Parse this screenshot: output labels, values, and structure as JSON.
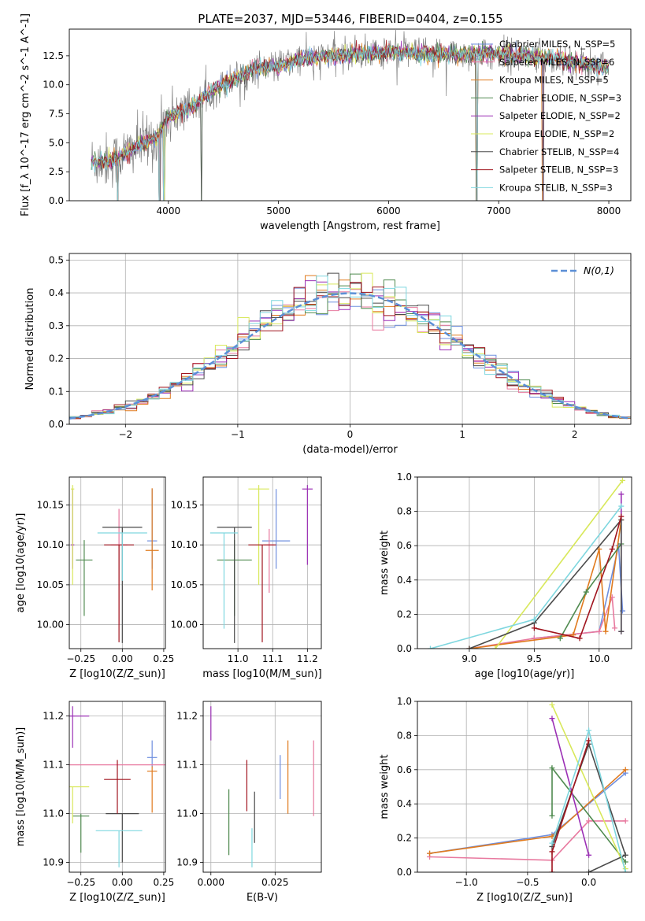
{
  "figure_title": "PLATE=2037, MJD=53446, FIBERID=0404, z=0.155",
  "series_legend": [
    {
      "name": "Chabrier MILES, N_SSP=5",
      "color": "#6f8fdf"
    },
    {
      "name": "Salpeter MILES, N_SSP=6",
      "color": "#e8799f"
    },
    {
      "name": "Kroupa MILES, N_SSP=5",
      "color": "#e07b1f"
    },
    {
      "name": "Chabrier ELODIE, N_SSP=3",
      "color": "#4f8a4f"
    },
    {
      "name": "Salpeter ELODIE, N_SSP=2",
      "color": "#9b2fb5"
    },
    {
      "name": "Kroupa ELODIE, N_SSP=2",
      "color": "#d8e85a"
    },
    {
      "name": "Chabrier STELIB, N_SSP=4",
      "color": "#4a4a4a"
    },
    {
      "name": "Salpeter STELIB, N_SSP=3",
      "color": "#a0141e"
    },
    {
      "name": "Kroupa STELIB, N_SSP=3",
      "color": "#7fd7df"
    }
  ],
  "chart_data": [
    {
      "id": "spectrum",
      "type": "line",
      "xlabel": "wavelength [Angstrom, rest frame]",
      "ylabel": "Flux [f_λ 10^-17 erg cm^-2 s^-1 A^-1]",
      "xlim": [
        3100,
        8200
      ],
      "ylim": [
        0,
        14.8
      ],
      "xticks": [
        4000,
        5000,
        6000,
        7000,
        8000
      ],
      "yticks": [
        0.0,
        2.5,
        5.0,
        7.5,
        10.0,
        12.5
      ],
      "grid": false,
      "legend_position": "lower-right",
      "observed_data_color": "#808080",
      "continuum_model": [
        [
          3300,
          3.4
        ],
        [
          3500,
          3.5
        ],
        [
          3700,
          4.6
        ],
        [
          3900,
          5.5
        ],
        [
          4000,
          7.2
        ],
        [
          4200,
          8.0
        ],
        [
          4400,
          9.5
        ],
        [
          4600,
          10.5
        ],
        [
          4800,
          11.5
        ],
        [
          5000,
          11.6
        ],
        [
          5200,
          12.2
        ],
        [
          5500,
          12.5
        ],
        [
          6000,
          12.8
        ],
        [
          6500,
          12.6
        ],
        [
          7000,
          12.7
        ],
        [
          7500,
          12.3
        ],
        [
          7800,
          11.8
        ],
        [
          8000,
          11.4
        ]
      ],
      "absorption_dips": [
        3540,
        3920,
        3960,
        4300,
        6800,
        7400
      ]
    },
    {
      "id": "residual_histogram",
      "type": "bar",
      "xlabel": "(data-model)/error",
      "ylabel": "Normed distribution",
      "xlim": [
        -2.5,
        2.5
      ],
      "ylim": [
        0,
        0.52
      ],
      "xticks": [
        -2,
        -1,
        0,
        1,
        2
      ],
      "yticks": [
        0.0,
        0.1,
        0.2,
        0.3,
        0.4,
        0.5
      ],
      "grid": true,
      "legend_position": "top-right",
      "bin_width": 0.1,
      "reference_curve": {
        "name": "N(0,1)",
        "mu": 0,
        "sigma": 1,
        "color": "#5b8fd6"
      }
    },
    {
      "id": "age_vs_Z",
      "type": "scatter",
      "xlabel": "Z [log10(Z/Z_sun)]",
      "ylabel": "age  [log10(age/yr)]",
      "xlim": [
        -0.32,
        0.26
      ],
      "ylim": [
        9.97,
        10.185
      ],
      "xticks": [
        -0.25,
        0.0,
        0.25
      ],
      "yticks": [
        10.0,
        10.05,
        10.1,
        10.15
      ],
      "grid": true,
      "points": [
        {
          "series": 0,
          "x": 0.18,
          "xerr": 0.03,
          "y": 10.105,
          "yerr_lo": 0.035,
          "yerr_hi": 0.065
        },
        {
          "series": 1,
          "x": -0.02,
          "xerr": 0.05,
          "y": 10.1,
          "yerr_lo": 0.1,
          "yerr_hi": 0.045
        },
        {
          "series": 2,
          "x": 0.18,
          "xerr": 0.04,
          "y": 10.093,
          "yerr_lo": 0.05,
          "yerr_hi": 0.078
        },
        {
          "series": 3,
          "x": -0.23,
          "xerr": 0.05,
          "y": 10.081,
          "yerr_lo": 0.07,
          "yerr_hi": 0.025
        },
        {
          "series": 4,
          "x": -0.3,
          "xerr": 0.01,
          "y": 10.1,
          "yerr_lo": 0.03,
          "yerr_hi": 0.07
        },
        {
          "series": 5,
          "x": -0.3,
          "xerr": 0.01,
          "y": 10.17,
          "yerr_lo": 0.12,
          "yerr_hi": 0.005
        },
        {
          "series": 6,
          "x": 0.0,
          "xerr": 0.12,
          "y": 10.122,
          "yerr_lo": 0.145,
          "yerr_hi": 0.0
        },
        {
          "series": 7,
          "x": -0.02,
          "xerr": 0.09,
          "y": 10.1,
          "yerr_lo": 0.122,
          "yerr_hi": 0.0
        },
        {
          "series": 8,
          "x": 0.0,
          "xerr": 0.15,
          "y": 10.115,
          "yerr_lo": 0.06,
          "yerr_hi": 0.0
        }
      ]
    },
    {
      "id": "age_vs_mass",
      "type": "scatter",
      "xlabel": "mass [log10(M/M_sun)]",
      "ylabel": "",
      "xlim": [
        10.9,
        11.24
      ],
      "ylim": [
        9.97,
        10.185
      ],
      "xticks": [
        11.0,
        11.1,
        11.2
      ],
      "yticks": [
        10.0,
        10.05,
        10.1,
        10.15
      ],
      "grid": true,
      "points": [
        {
          "series": 0,
          "x": 11.11,
          "xerr": 0.04,
          "y": 10.105,
          "yerr_lo": 0.035,
          "yerr_hi": 0.065
        },
        {
          "series": 1,
          "x": 11.09,
          "xerr": 0.015,
          "y": 10.1,
          "yerr_lo": 0.06,
          "yerr_hi": 0.02
        },
        {
          "series": 3,
          "x": 10.99,
          "xerr": 0.05,
          "y": 10.081,
          "yerr_lo": 0.07,
          "yerr_hi": 0.025
        },
        {
          "series": 4,
          "x": 11.2,
          "xerr": 0.015,
          "y": 10.17,
          "yerr_lo": 0.095,
          "yerr_hi": 0.005
        },
        {
          "series": 5,
          "x": 11.06,
          "xerr": 0.03,
          "y": 10.17,
          "yerr_lo": 0.12,
          "yerr_hi": 0.005
        },
        {
          "series": 6,
          "x": 10.99,
          "xerr": 0.05,
          "y": 10.122,
          "yerr_lo": 0.145,
          "yerr_hi": 0.0
        },
        {
          "series": 7,
          "x": 11.07,
          "xerr": 0.04,
          "y": 10.1,
          "yerr_lo": 0.122,
          "yerr_hi": 0.0
        },
        {
          "series": 8,
          "x": 10.96,
          "xerr": 0.04,
          "y": 10.115,
          "yerr_lo": 0.12,
          "yerr_hi": 0.0
        }
      ]
    },
    {
      "id": "mass_weight_vs_age",
      "type": "line",
      "xlabel": "age  [log10(age/yr)]",
      "ylabel": "mass weight",
      "xlim": [
        8.6,
        10.25
      ],
      "ylim": [
        0,
        1.0
      ],
      "xticks": [
        9.0,
        9.5,
        10.0
      ],
      "yticks": [
        0.0,
        0.2,
        0.4,
        0.6,
        0.8,
        1.0
      ],
      "grid": true,
      "series": [
        {
          "series": 0,
          "points": [
            [
              9.5,
              0.06
            ],
            [
              10.0,
              0.1
            ],
            [
              10.15,
              0.6
            ],
            [
              10.18,
              0.22
            ]
          ]
        },
        {
          "series": 1,
          "points": [
            [
              9.0,
              0.0
            ],
            [
              9.5,
              0.06
            ],
            [
              10.0,
              0.1
            ],
            [
              10.1,
              0.3
            ],
            [
              10.12,
              0.12
            ]
          ]
        },
        {
          "series": 2,
          "points": [
            [
              9.0,
              0.0
            ],
            [
              9.8,
              0.08
            ],
            [
              10.0,
              0.58
            ],
            [
              10.05,
              0.1
            ],
            [
              10.17,
              0.75
            ]
          ]
        },
        {
          "series": 3,
          "points": [
            [
              9.7,
              0.06
            ],
            [
              9.9,
              0.33
            ],
            [
              10.17,
              0.61
            ]
          ]
        },
        {
          "series": 4,
          "points": [
            [
              10.17,
              0.1
            ],
            [
              10.17,
              0.9
            ]
          ]
        },
        {
          "series": 5,
          "points": [
            [
              9.2,
              0.0
            ],
            [
              10.18,
              0.98
            ]
          ]
        },
        {
          "series": 6,
          "points": [
            [
              9.0,
              0.0
            ],
            [
              9.5,
              0.15
            ],
            [
              10.17,
              0.75
            ],
            [
              10.17,
              0.1
            ]
          ]
        },
        {
          "series": 7,
          "points": [
            [
              9.5,
              0.12
            ],
            [
              9.85,
              0.06
            ],
            [
              10.1,
              0.58
            ],
            [
              10.17,
              0.77
            ]
          ]
        },
        {
          "series": 8,
          "points": [
            [
              8.7,
              0.0
            ],
            [
              9.5,
              0.17
            ],
            [
              10.17,
              0.83
            ]
          ]
        }
      ]
    },
    {
      "id": "mass_vs_Z",
      "type": "scatter",
      "xlabel": "Z [log10(Z/Z_sun)]",
      "ylabel": "mass [log10(M/M_sun)]",
      "xlim": [
        -0.32,
        0.26
      ],
      "ylim": [
        10.88,
        11.23
      ],
      "xticks": [
        -0.25,
        0.0,
        0.25
      ],
      "yticks": [
        10.9,
        11.0,
        11.1,
        11.2
      ],
      "grid": true,
      "points": [
        {
          "series": 0,
          "x": 0.18,
          "xerr": 0.03,
          "y": 11.115,
          "yerr_lo": 0.02,
          "yerr_hi": 0.035
        },
        {
          "series": 1,
          "x": -0.02,
          "xerr": 0.3,
          "y": 11.1,
          "yerr_lo": 0.0,
          "yerr_hi": 0.0
        },
        {
          "series": 2,
          "x": 0.18,
          "xerr": 0.03,
          "y": 11.087,
          "yerr_lo": 0.085,
          "yerr_hi": 0.01
        },
        {
          "series": 3,
          "x": -0.25,
          "xerr": 0.05,
          "y": 10.995,
          "yerr_lo": 0.075,
          "yerr_hi": 0.005
        },
        {
          "series": 4,
          "x": -0.3,
          "xerr": 0.1,
          "y": 11.2,
          "yerr_lo": 0.065,
          "yerr_hi": 0.02
        },
        {
          "series": 5,
          "x": -0.3,
          "xerr": 0.1,
          "y": 11.055,
          "yerr_lo": 0.075,
          "yerr_hi": 0.0
        },
        {
          "series": 6,
          "x": 0.0,
          "xerr": 0.1,
          "y": 11.0,
          "yerr_lo": 0.1,
          "yerr_hi": 0.0
        },
        {
          "series": 7,
          "x": -0.03,
          "xerr": 0.08,
          "y": 11.07,
          "yerr_lo": 0.07,
          "yerr_hi": 0.04
        },
        {
          "series": 8,
          "x": -0.02,
          "xerr": 0.14,
          "y": 10.965,
          "yerr_lo": 0.075,
          "yerr_hi": 0.0
        }
      ]
    },
    {
      "id": "mass_vs_ebv",
      "type": "scatter",
      "xlabel": "E(B-V)",
      "ylabel": "",
      "xlim": [
        -0.003,
        0.043
      ],
      "ylim": [
        10.88,
        11.23
      ],
      "xticks": [
        0.0,
        0.025
      ],
      "xticklabels": [
        "0.000",
        "0.025"
      ],
      "yticks": [
        10.9,
        11.0,
        11.1,
        11.2
      ],
      "grid": true,
      "points": [
        {
          "series": 0,
          "x": 0.027,
          "xerr": 0.0,
          "y": 11.07,
          "yerr_lo": 0.04,
          "yerr_hi": 0.05
        },
        {
          "series": 1,
          "x": 0.04,
          "xerr": 0.0,
          "y": 11.05,
          "yerr_lo": 0.055,
          "yerr_hi": 0.1
        },
        {
          "series": 2,
          "x": 0.03,
          "xerr": 0.0,
          "y": 11.05,
          "yerr_lo": 0.05,
          "yerr_hi": 0.1
        },
        {
          "series": 3,
          "x": 0.007,
          "xerr": 0.0,
          "y": 11.0,
          "yerr_lo": 0.085,
          "yerr_hi": 0.05
        },
        {
          "series": 4,
          "x": 0.0,
          "xerr": 0.0,
          "y": 11.2,
          "yerr_lo": 0.05,
          "yerr_hi": 0.02
        },
        {
          "series": 6,
          "x": 0.017,
          "xerr": 0.0,
          "y": 11.0,
          "yerr_lo": 0.06,
          "yerr_hi": 0.045
        },
        {
          "series": 7,
          "x": 0.014,
          "xerr": 0.0,
          "y": 11.05,
          "yerr_lo": 0.045,
          "yerr_hi": 0.06
        },
        {
          "series": 8,
          "x": 0.016,
          "xerr": 0.0,
          "y": 10.96,
          "yerr_lo": 0.07,
          "yerr_hi": 0.01
        }
      ]
    },
    {
      "id": "mass_weight_vs_Z",
      "type": "line",
      "xlabel": "Z [log10(Z/Z_sun)]",
      "ylabel": "mass weight",
      "xlim": [
        -1.4,
        0.35
      ],
      "ylim": [
        0,
        1.0
      ],
      "xticks": [
        -1.0,
        -0.5,
        0.0
      ],
      "yticks": [
        0.0,
        0.2,
        0.4,
        0.6,
        0.8,
        1.0
      ],
      "grid": true,
      "series": [
        {
          "series": 0,
          "points": [
            [
              -1.3,
              0.11
            ],
            [
              -0.3,
              0.22
            ],
            [
              0.3,
              0.58
            ]
          ]
        },
        {
          "series": 1,
          "points": [
            [
              -1.3,
              0.09
            ],
            [
              -0.3,
              0.07
            ],
            [
              0.0,
              0.3
            ],
            [
              0.3,
              0.3
            ]
          ]
        },
        {
          "series": 2,
          "points": [
            [
              -1.3,
              0.11
            ],
            [
              -0.3,
              0.21
            ],
            [
              0.3,
              0.6
            ]
          ]
        },
        {
          "series": 3,
          "points": [
            [
              -0.3,
              0.33
            ],
            [
              -0.3,
              0.61
            ],
            [
              0.3,
              0.06
            ]
          ]
        },
        {
          "series": 4,
          "points": [
            [
              -0.3,
              0.9
            ],
            [
              0.0,
              0.1
            ]
          ]
        },
        {
          "series": 5,
          "points": [
            [
              -0.3,
              0.98
            ],
            [
              0.3,
              0.02
            ]
          ]
        },
        {
          "series": 6,
          "points": [
            [
              -0.3,
              0.15
            ],
            [
              0.0,
              0.75
            ],
            [
              0.3,
              0.1
            ],
            [
              0.0,
              0.0
            ]
          ]
        },
        {
          "series": 7,
          "points": [
            [
              -0.3,
              0.0
            ],
            [
              -0.3,
              0.12
            ],
            [
              0.0,
              0.77
            ]
          ]
        },
        {
          "series": 8,
          "points": [
            [
              -0.3,
              0.17
            ],
            [
              0.0,
              0.83
            ],
            [
              0.3,
              0.0
            ]
          ]
        }
      ]
    }
  ]
}
